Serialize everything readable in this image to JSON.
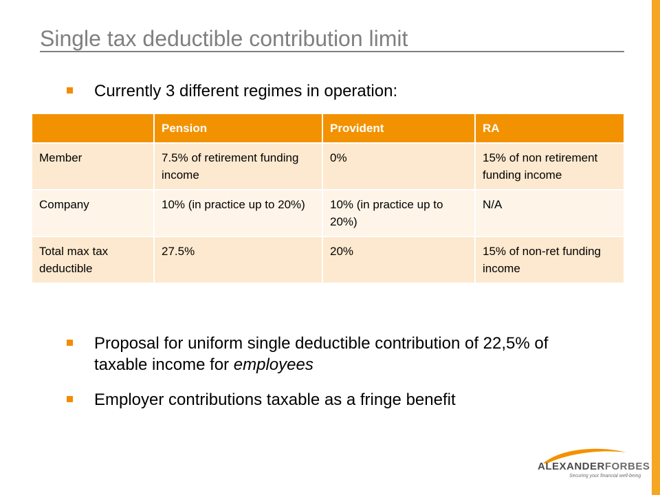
{
  "slide": {
    "title": "Single tax deductible contribution limit",
    "bullets": [
      {
        "parts": [
          "Currently 3 different regimes in operation:"
        ]
      },
      {
        "parts": [
          "Proposal for uniform single deductible contribution of 22,5% of taxable income for ",
          "employees"
        ]
      },
      {
        "parts": [
          "Employer contributions taxable as a fringe benefit"
        ]
      }
    ]
  },
  "table": {
    "headers": [
      "",
      "Pension",
      "Provident",
      "RA"
    ],
    "rows": [
      [
        "Member",
        "7.5% of retirement funding income",
        "0%",
        "15% of non retirement funding income"
      ],
      [
        "Company",
        "10% (in practice up to 20%)",
        "10% (in practice up to 20%)",
        "N/A"
      ],
      [
        "Total max tax deductible",
        "27.5%",
        "20%",
        "15% of non-ret funding income"
      ]
    ]
  },
  "logo": {
    "brand_light": "ALEXANDER",
    "brand_bold": "FORBES",
    "tagline": "Securing your financial well-being"
  },
  "colors": {
    "accent": "#f39200",
    "title": "#7f7f7f",
    "row_light": "#fef4e8",
    "row_dark": "#fde9cf"
  }
}
